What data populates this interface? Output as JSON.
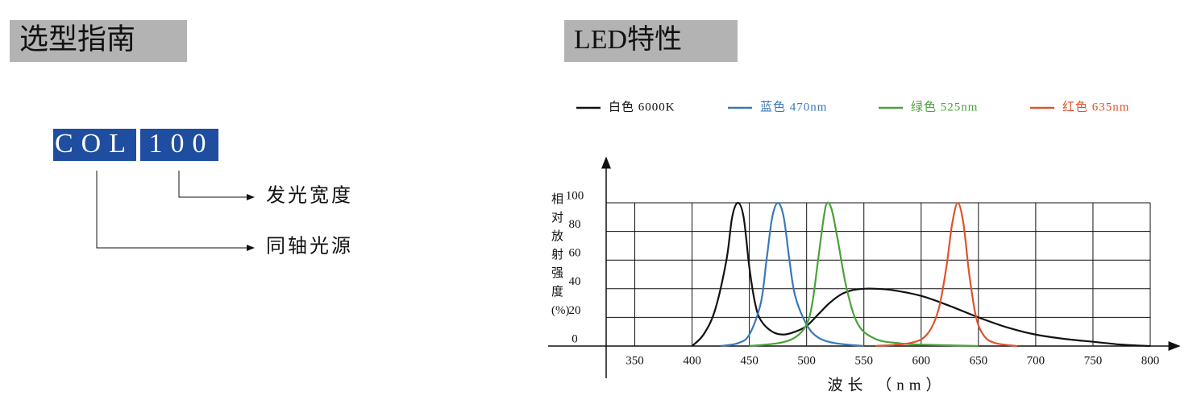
{
  "left": {
    "title": "选型指南",
    "code": [
      "COL",
      "100"
    ],
    "labels": [
      "发光宽度",
      "同轴光源"
    ]
  },
  "right": {
    "title": "LED特性"
  },
  "chart_data": {
    "type": "line",
    "x_label": "波长 （nm）",
    "y_label": "相对放射强度(%)",
    "xlim": [
      325,
      800
    ],
    "ylim": [
      0,
      100
    ],
    "xticks": [
      350,
      400,
      450,
      500,
      550,
      600,
      650,
      700,
      750,
      800
    ],
    "yticks": [
      0,
      20,
      40,
      60,
      80,
      100
    ],
    "grid": true,
    "series": [
      {
        "name": "白色 6000K",
        "color": "#111111",
        "x": [
          400,
          410,
          420,
          430,
          435,
          440,
          445,
          450,
          455,
          460,
          470,
          480,
          490,
          500,
          510,
          520,
          530,
          540,
          550,
          560,
          575,
          600,
          625,
          650,
          675,
          700,
          725,
          750,
          775,
          800
        ],
        "values": [
          0,
          8,
          25,
          60,
          90,
          100,
          90,
          55,
          30,
          18,
          10,
          8,
          10,
          14,
          22,
          30,
          36,
          39,
          40,
          40,
          39,
          35,
          28,
          20,
          13,
          8,
          5,
          3,
          1,
          0
        ]
      },
      {
        "name": "蓝色 470nm",
        "color": "#3a78b8",
        "x": [
          425,
          440,
          450,
          460,
          465,
          470,
          475,
          480,
          485,
          490,
          500,
          510,
          525,
          550
        ],
        "values": [
          0,
          2,
          8,
          30,
          60,
          90,
          100,
          90,
          60,
          35,
          15,
          6,
          2,
          0
        ]
      },
      {
        "name": "绿色 525nm",
        "color": "#4aa23a",
        "x": [
          450,
          475,
          490,
          500,
          505,
          510,
          515,
          518,
          522,
          527,
          535,
          545,
          560,
          580,
          600,
          650
        ],
        "values": [
          0,
          2,
          6,
          15,
          30,
          60,
          90,
          100,
          95,
          75,
          40,
          15,
          5,
          2,
          1,
          0
        ]
      },
      {
        "name": "红色 635nm",
        "color": "#e0522a",
        "x": [
          560,
          590,
          605,
          615,
          622,
          627,
          632,
          637,
          642,
          648,
          655,
          665,
          684
        ],
        "values": [
          0,
          2,
          8,
          25,
          55,
          85,
          100,
          85,
          50,
          20,
          7,
          2,
          0
        ]
      }
    ]
  }
}
